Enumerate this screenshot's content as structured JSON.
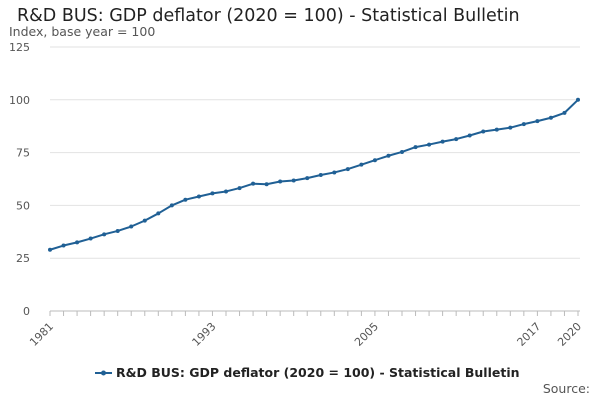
{
  "chart_data": {
    "type": "line",
    "title": "R&D BUS: GDP deflator (2020 = 100) - Statistical Bulletin",
    "ylabel": "Index, base year = 100",
    "xlabel": "",
    "ylim": [
      0,
      125
    ],
    "yticks": [
      0,
      25,
      50,
      75,
      100,
      125
    ],
    "xlim": [
      1981,
      2020
    ],
    "xtick_labels": [
      "1981",
      "1993",
      "2005",
      "2017",
      "2020"
    ],
    "grid": true,
    "legend_position": "bottom",
    "series": [
      {
        "name": "R&D BUS: GDP deflator (2020 = 100) - Statistical Bulletin",
        "color": "#206095",
        "x": [
          1981,
          1982,
          1983,
          1984,
          1985,
          1986,
          1987,
          1988,
          1989,
          1990,
          1991,
          1992,
          1993,
          1994,
          1995,
          1996,
          1997,
          1998,
          1999,
          2000,
          2001,
          2002,
          2003,
          2004,
          2005,
          2006,
          2007,
          2008,
          2009,
          2010,
          2011,
          2012,
          2013,
          2014,
          2015,
          2016,
          2017,
          2018,
          2019,
          2020
        ],
        "values": [
          29,
          31,
          32.5,
          34.3,
          36.3,
          37.9,
          40,
          42.8,
          46.2,
          50,
          52.7,
          54.2,
          55.7,
          56.6,
          58.2,
          60.3,
          60,
          61.3,
          61.8,
          62.9,
          64.4,
          65.6,
          67.2,
          69.3,
          71.4,
          73.5,
          75.3,
          77.6,
          78.8,
          80.2,
          81.4,
          83.1,
          85,
          85.9,
          86.8,
          88.5,
          89.9,
          91.5,
          93.8,
          100
        ]
      }
    ]
  },
  "source_label": "Source:"
}
